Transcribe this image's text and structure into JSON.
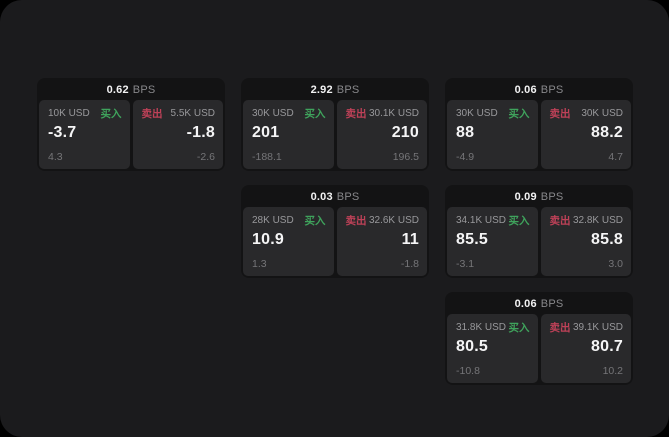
{
  "screen": {
    "background": "#000000",
    "panel_color": "#1b1b1d"
  },
  "colors": {
    "card_bg": "#131314",
    "tile_bg": "#29292b",
    "buy_green": "#3fa35c",
    "sell_red": "#bf4158",
    "text_primary": "#f2f2f3",
    "text_secondary": "#98989b",
    "text_dim": "#757578"
  },
  "labels": {
    "buy": "买入",
    "sell": "卖出",
    "bps_unit": "BPS"
  },
  "cards": [
    {
      "bps": "0.62",
      "col": 1,
      "row": 1,
      "buy": {
        "amount": "10K USD",
        "value": "-3.7",
        "change": "4.3"
      },
      "sell": {
        "amount": "5.5K USD",
        "value": "-1.8",
        "change": "-2.6"
      }
    },
    {
      "bps": "2.92",
      "col": 2,
      "row": 1,
      "buy": {
        "amount": "30K USD",
        "value": "201",
        "change": "-188.1"
      },
      "sell": {
        "amount": "30.1K USD",
        "value": "210",
        "change": "196.5"
      }
    },
    {
      "bps": "0.06",
      "col": 3,
      "row": 1,
      "buy": {
        "amount": "30K USD",
        "value": "88",
        "change": "-4.9"
      },
      "sell": {
        "amount": "30K USD",
        "value": "88.2",
        "change": "4.7"
      }
    },
    {
      "bps": "0.03",
      "col": 2,
      "row": 2,
      "buy": {
        "amount": "28K USD",
        "value": "10.9",
        "change": "1.3"
      },
      "sell": {
        "amount": "32.6K USD",
        "value": "11",
        "change": "-1.8"
      }
    },
    {
      "bps": "0.09",
      "col": 3,
      "row": 2,
      "buy": {
        "amount": "34.1K USD",
        "value": "85.5",
        "change": "-3.1"
      },
      "sell": {
        "amount": "32.8K USD",
        "value": "85.8",
        "change": "3.0"
      }
    },
    {
      "bps": "0.06",
      "col": 3,
      "row": 3,
      "buy": {
        "amount": "31.8K USD",
        "value": "80.5",
        "change": "-10.8"
      },
      "sell": {
        "amount": "39.1K USD",
        "value": "80.7",
        "change": "10.2"
      }
    }
  ]
}
